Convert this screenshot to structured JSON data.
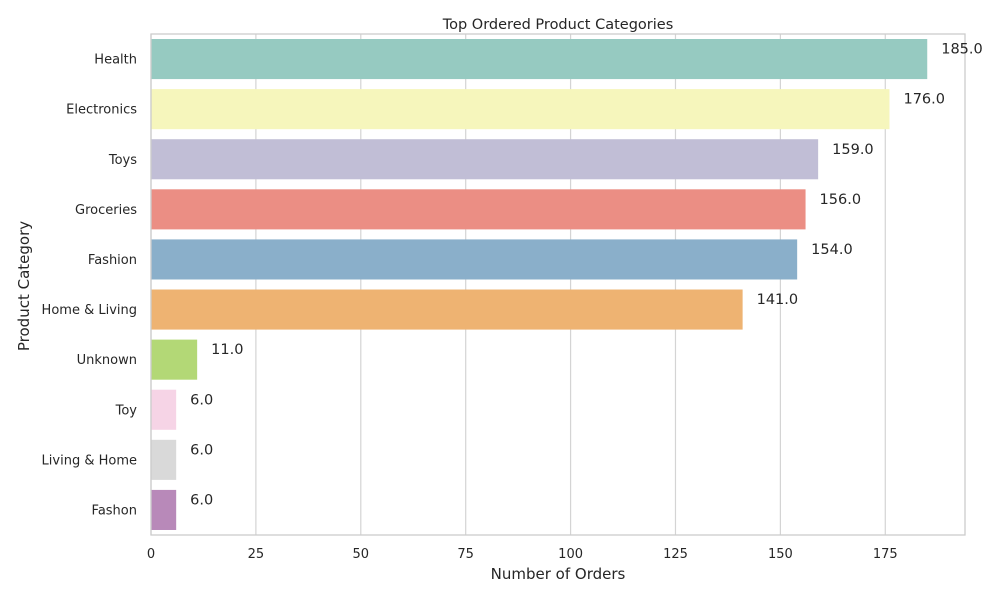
{
  "chart_data": {
    "type": "bar",
    "orientation": "horizontal",
    "title": "Top Ordered Product Categories",
    "xlabel": "Number of Orders",
    "ylabel": "Product Category",
    "xlim": [
      0,
      194
    ],
    "x_ticks": [
      0,
      25,
      50,
      75,
      100,
      125,
      150,
      175
    ],
    "grid": "vertical",
    "categories": [
      "Health",
      "Electronics",
      "Toys",
      "Groceries",
      "Fashion",
      "Home & Living",
      "Unknown",
      "Toy",
      "Living & Home",
      "Fashon"
    ],
    "values": [
      185,
      176,
      159,
      156,
      154,
      141,
      11,
      6,
      6,
      6
    ],
    "value_labels": [
      "185.0",
      "176.0",
      "159.0",
      "156.0",
      "154.0",
      "141.0",
      "11.0",
      "6.0",
      "6.0",
      "6.0"
    ],
    "colors": [
      "#96cac1",
      "#f6f6bc",
      "#c1bed6",
      "#eb8e84",
      "#8aafca",
      "#eeb372",
      "#b3d876",
      "#f6d4e6",
      "#d9d9d9",
      "#b889b9"
    ]
  }
}
